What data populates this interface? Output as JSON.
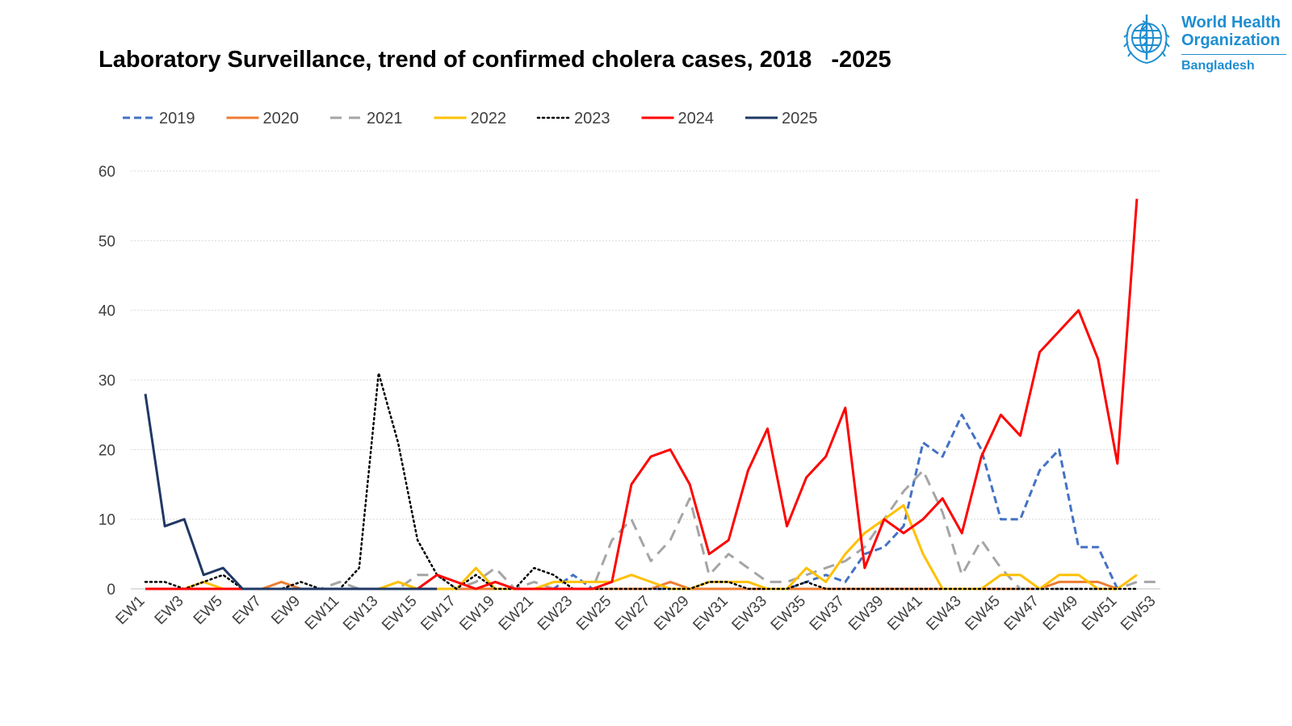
{
  "title": "Laboratory Surveillance, trend of confirmed cholera cases, 2018   -2025",
  "logo": {
    "line1": "World Health",
    "line2": "Organization",
    "country": "Bangladesh",
    "color": "#1f8ed1",
    "icon": "who-emblem-icon"
  },
  "chart_data": {
    "type": "line",
    "title": "Laboratory Surveillance, trend of confirmed cholera cases, 2018   -2025",
    "xlabel": "",
    "ylabel": "",
    "ylim": [
      0,
      60
    ],
    "yticks": [
      0,
      10,
      20,
      30,
      40,
      50,
      60
    ],
    "grid": true,
    "legend_position": "top",
    "categories": [
      "EW1",
      "EW2",
      "EW3",
      "EW4",
      "EW5",
      "EW6",
      "EW7",
      "EW8",
      "EW9",
      "EW10",
      "EW11",
      "EW12",
      "EW13",
      "EW14",
      "EW15",
      "EW16",
      "EW17",
      "EW18",
      "EW19",
      "EW20",
      "EW21",
      "EW22",
      "EW23",
      "EW24",
      "EW25",
      "EW26",
      "EW27",
      "EW28",
      "EW29",
      "EW30",
      "EW31",
      "EW32",
      "EW33",
      "EW34",
      "EW35",
      "EW36",
      "EW37",
      "EW38",
      "EW39",
      "EW40",
      "EW41",
      "EW42",
      "EW43",
      "EW44",
      "EW45",
      "EW46",
      "EW47",
      "EW48",
      "EW49",
      "EW50",
      "EW51",
      "EW52",
      "EW53"
    ],
    "tick_labels": [
      "EW1",
      "EW3",
      "EW5",
      "EW7",
      "EW9",
      "EW11",
      "EW13",
      "EW15",
      "EW17",
      "EW19",
      "EW21",
      "EW23",
      "EW25",
      "EW27",
      "EW29",
      "EW31",
      "EW33",
      "EW35",
      "EW37",
      "EW39",
      "EW41",
      "EW43",
      "EW45",
      "EW47",
      "EW49",
      "EW51",
      "EW53"
    ],
    "series": [
      {
        "name": "2019",
        "color": "#4472c4",
        "dash": "dash",
        "values": [
          0,
          0,
          0,
          0,
          0,
          0,
          0,
          0,
          0,
          0,
          0,
          0,
          0,
          0,
          0,
          0,
          0,
          0,
          0,
          0,
          0,
          0,
          2,
          0,
          0,
          0,
          0,
          0,
          0,
          0,
          0,
          0,
          0,
          0,
          1,
          2,
          1,
          5,
          6,
          9,
          21,
          19,
          25,
          20,
          10,
          10,
          17,
          20,
          6,
          6,
          0,
          null,
          null
        ]
      },
      {
        "name": "2020",
        "color": "#ed7d31",
        "dash": "solid",
        "values": [
          0,
          0,
          0,
          0,
          0,
          0,
          0,
          1,
          0,
          0,
          0,
          0,
          0,
          0,
          0,
          0,
          0,
          0,
          0,
          0,
          0,
          0,
          0,
          0,
          0,
          0,
          0,
          1,
          0,
          0,
          0,
          0,
          0,
          0,
          0,
          0,
          0,
          0,
          0,
          0,
          0,
          0,
          0,
          0,
          0,
          0,
          0,
          1,
          1,
          1,
          0,
          null,
          null
        ]
      },
      {
        "name": "2021",
        "color": "#a5a5a5",
        "dash": "longdash",
        "values": [
          0,
          0,
          0,
          0,
          0,
          0,
          0,
          0,
          0,
          0,
          1,
          0,
          0,
          0,
          2,
          2,
          0,
          1,
          3,
          0,
          1,
          0,
          0,
          0,
          7,
          10,
          4,
          7,
          13,
          2,
          5,
          3,
          1,
          1,
          2,
          3,
          4,
          6,
          10,
          14,
          17,
          11,
          2,
          7,
          3,
          0,
          0,
          0,
          0,
          0,
          0,
          1,
          1
        ]
      },
      {
        "name": "2022",
        "color": "#ffc000",
        "dash": "solid",
        "values": [
          0,
          0,
          0,
          1,
          0,
          0,
          0,
          0,
          0,
          0,
          0,
          0,
          0,
          1,
          0,
          0,
          0,
          3,
          0,
          0,
          0,
          1,
          1,
          1,
          1,
          2,
          1,
          0,
          0,
          1,
          1,
          1,
          0,
          0,
          3,
          1,
          5,
          8,
          10,
          12,
          5,
          0,
          0,
          0,
          2,
          2,
          0,
          2,
          2,
          0,
          0,
          2,
          null
        ]
      },
      {
        "name": "2023",
        "color": "#000000",
        "dash": "dot",
        "values": [
          1,
          1,
          0,
          1,
          2,
          0,
          0,
          0,
          1,
          0,
          0,
          3,
          31,
          21,
          7,
          2,
          0,
          2,
          0,
          0,
          3,
          2,
          0,
          0,
          0,
          0,
          0,
          0,
          0,
          1,
          1,
          0,
          0,
          0,
          1,
          0,
          0,
          0,
          0,
          0,
          0,
          0,
          0,
          0,
          0,
          0,
          0,
          0,
          0,
          0,
          0,
          0,
          null
        ]
      },
      {
        "name": "2024",
        "color": "#ff0000",
        "dash": "solid",
        "values": [
          0,
          0,
          0,
          0,
          0,
          0,
          0,
          0,
          0,
          0,
          0,
          0,
          0,
          0,
          0,
          2,
          1,
          0,
          1,
          0,
          0,
          0,
          0,
          0,
          1,
          15,
          19,
          20,
          15,
          5,
          7,
          17,
          23,
          9,
          16,
          19,
          26,
          3,
          10,
          8,
          10,
          13,
          8,
          19,
          25,
          22,
          34,
          37,
          40,
          33,
          18,
          56,
          null
        ]
      },
      {
        "name": "2025",
        "color": "#203864",
        "dash": "solid",
        "values": [
          28,
          9,
          10,
          2,
          3,
          0,
          0,
          0,
          0,
          0,
          0,
          0,
          0,
          0,
          0,
          0,
          null,
          null,
          null,
          null,
          null,
          null,
          null,
          null,
          null,
          null,
          null,
          null,
          null,
          null,
          null,
          null,
          null,
          null,
          null,
          null,
          null,
          null,
          null,
          null,
          null,
          null,
          null,
          null,
          null,
          null,
          null,
          null,
          null,
          null,
          null,
          null,
          null
        ]
      }
    ]
  }
}
